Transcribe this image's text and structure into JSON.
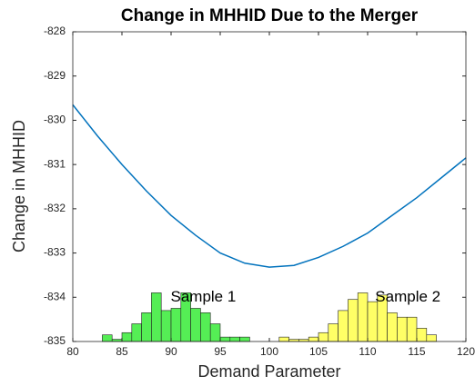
{
  "chart_data": {
    "type": "line",
    "title": "Change in MHHID Due to the Merger",
    "x_label": "Demand Parameter",
    "y_label": "Change in MHHID",
    "xlim": [
      80,
      120
    ],
    "ylim": [
      -835,
      -828
    ],
    "xticks": [
      80,
      85,
      90,
      95,
      100,
      105,
      110,
      115,
      120
    ],
    "yticks": [
      -835,
      -834,
      -833,
      -832,
      -831,
      -830,
      -829,
      -828
    ],
    "x": [
      80,
      82.5,
      85,
      87.5,
      90,
      92.5,
      95,
      97.5,
      100,
      102.5,
      105,
      107.5,
      110,
      112.5,
      115,
      117.5,
      120
    ],
    "series": [
      {
        "color": "#0072bd",
        "values": [
          -829.65,
          -830.35,
          -831.0,
          -831.6,
          -832.15,
          -832.6,
          -833.0,
          -833.23,
          -833.32,
          -833.28,
          -833.1,
          -832.85,
          -832.55,
          -832.15,
          -831.75,
          -831.3,
          -830.85
        ]
      }
    ],
    "histograms": [
      {
        "label": "Sample 1",
        "color": "#55ee55",
        "bins": [
          83,
          84,
          85,
          86,
          87,
          88,
          89,
          90,
          91,
          92,
          93,
          94,
          95,
          96,
          97,
          98
        ],
        "values": [
          -834.85,
          -834.95,
          -834.8,
          -834.6,
          -834.35,
          -833.9,
          -834.3,
          -834.25,
          -833.9,
          -834.25,
          -834.35,
          -834.6,
          -834.9,
          -834.9,
          -834.9
        ]
      },
      {
        "label": "Sample 2",
        "color": "#ffff66",
        "bins": [
          101,
          102,
          103,
          104,
          105,
          106,
          107,
          108,
          109,
          110,
          111,
          112,
          113,
          114,
          115,
          116,
          117
        ],
        "values": [
          -834.9,
          -834.95,
          -834.95,
          -834.9,
          -834.8,
          -834.6,
          -834.3,
          -834.05,
          -833.9,
          -834.1,
          -833.95,
          -834.35,
          -834.45,
          -834.45,
          -834.7,
          -834.85
        ]
      }
    ]
  }
}
